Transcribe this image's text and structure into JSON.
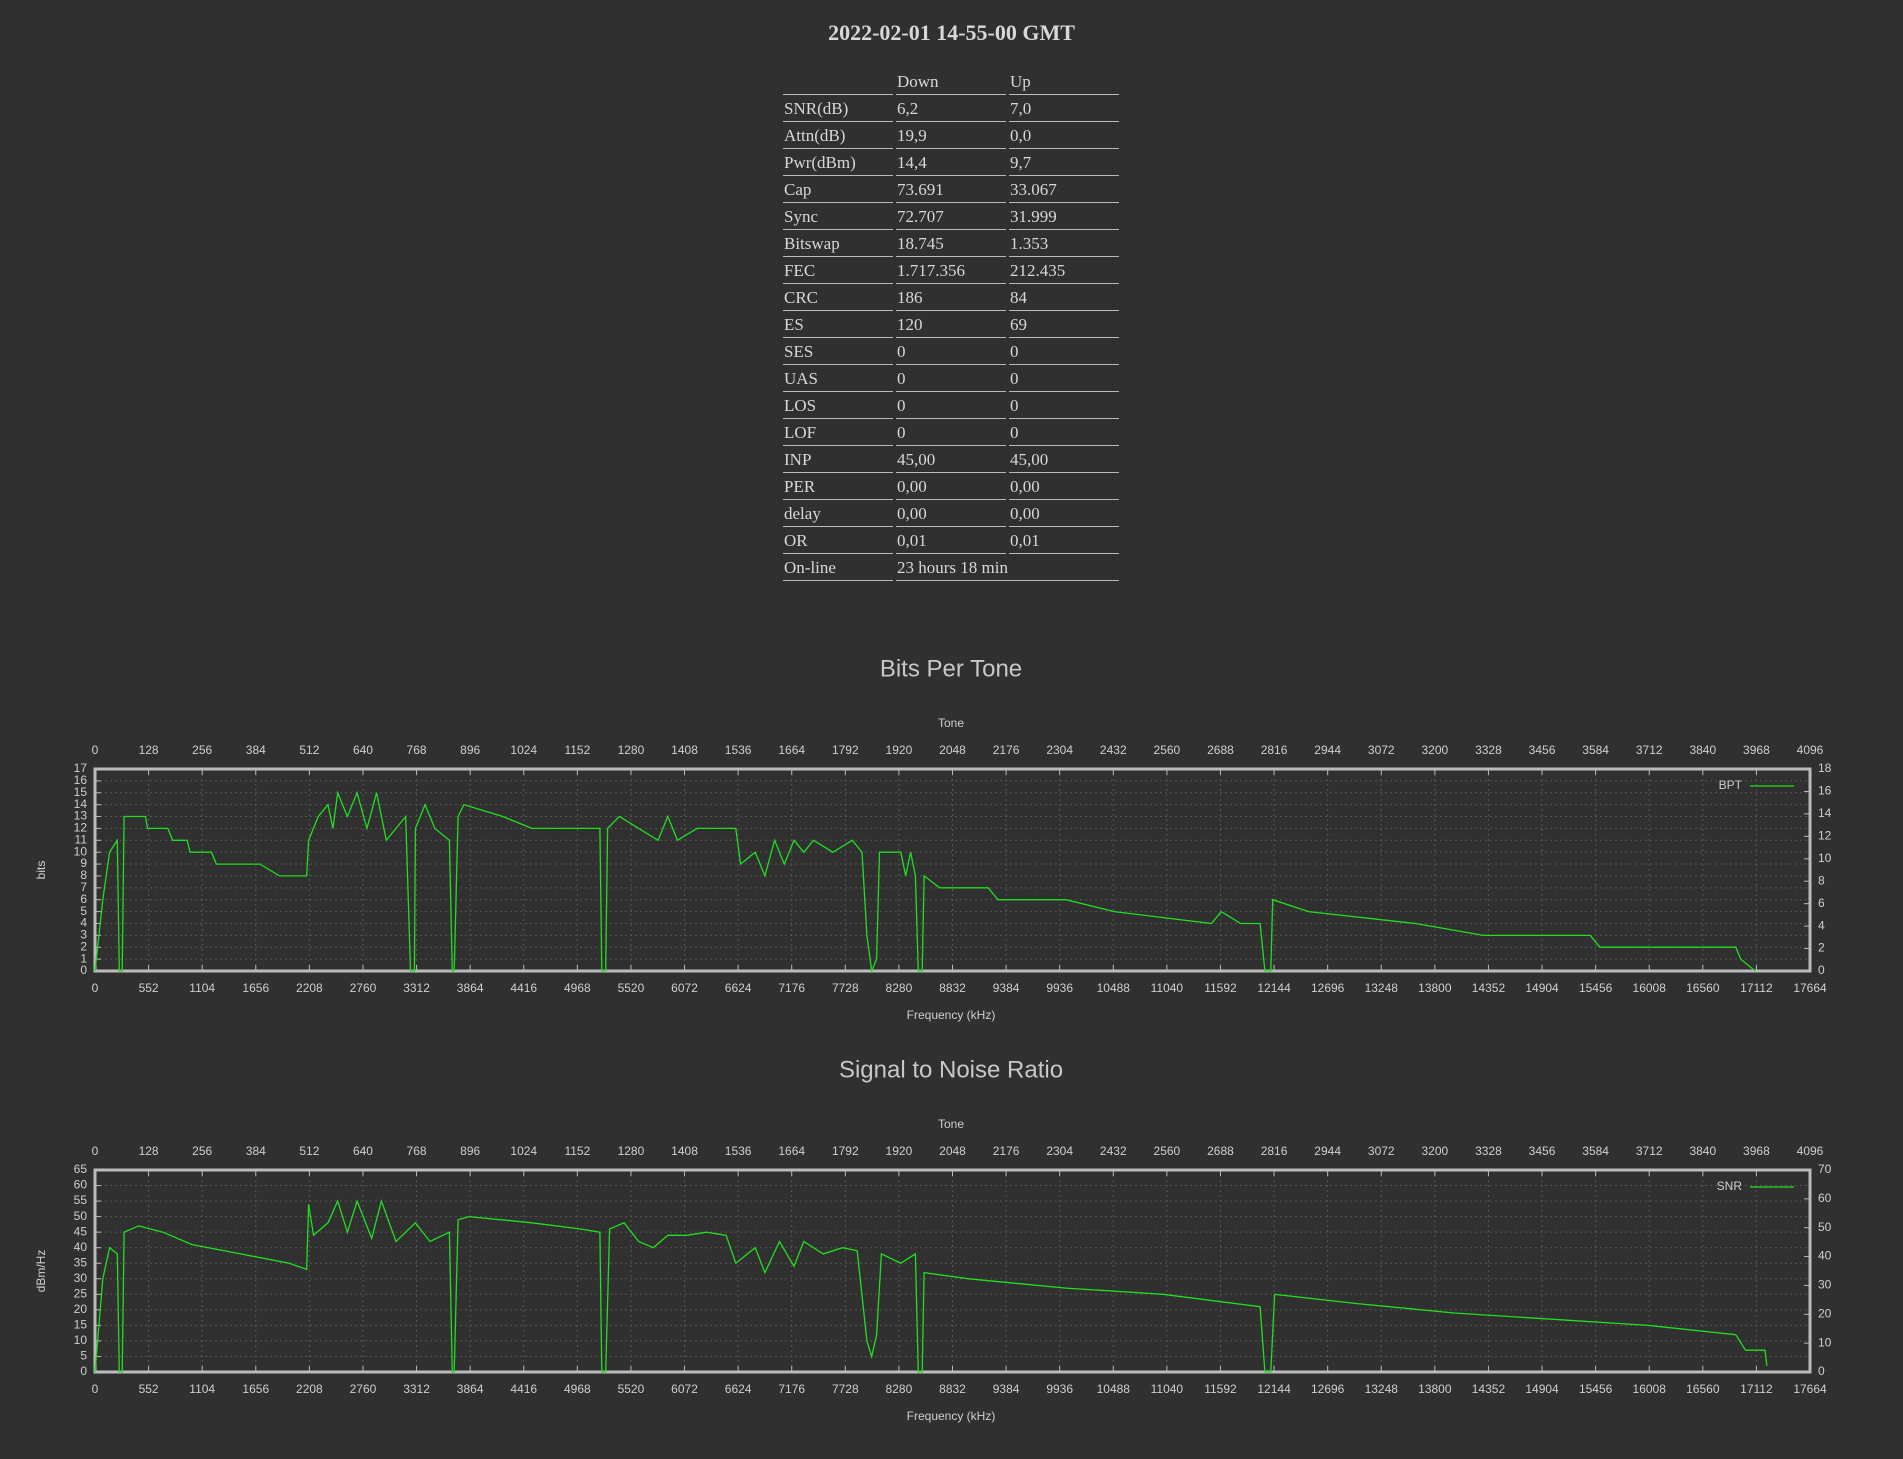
{
  "title": "2022-02-01 14-55-00 GMT",
  "table": {
    "columns": [
      "Down",
      "Up"
    ],
    "rows": [
      [
        "SNR(dB)",
        "6,2",
        "7,0"
      ],
      [
        "Attn(dB)",
        "19,9",
        "0,0"
      ],
      [
        "Pwr(dBm)",
        "14,4",
        "9,7"
      ],
      [
        "Cap",
        "73.691",
        "33.067"
      ],
      [
        "Sync",
        "72.707",
        "31.999"
      ],
      [
        "Bitswap",
        "18.745",
        "1.353"
      ],
      [
        "FEC",
        "1.717.356",
        "212.435"
      ],
      [
        "CRC",
        "186",
        "84"
      ],
      [
        "ES",
        "120",
        "69"
      ],
      [
        "SES",
        "0",
        "0"
      ],
      [
        "UAS",
        "0",
        "0"
      ],
      [
        "LOS",
        "0",
        "0"
      ],
      [
        "LOF",
        "0",
        "0"
      ],
      [
        "INP",
        "45,00",
        "45,00"
      ],
      [
        "PER",
        "0,00",
        "0,00"
      ],
      [
        "delay",
        "0,00",
        "0,00"
      ],
      [
        "OR",
        "0,01",
        "0,01"
      ],
      [
        "On-line",
        "23 hours 18 min"
      ]
    ]
  },
  "chart_data": [
    {
      "type": "line",
      "title": "Bits Per Tone",
      "x2label": "Tone",
      "xlabel": "Frequency (kHz)",
      "ylabel": "bits",
      "xlim": [
        0,
        17664
      ],
      "xticks": [
        0,
        552,
        1104,
        1656,
        2208,
        2760,
        3312,
        3864,
        4416,
        4968,
        5520,
        6072,
        6624,
        7176,
        7728,
        8280,
        8832,
        9384,
        9936,
        10488,
        11040,
        11592,
        12144,
        12696,
        13248,
        13800,
        14352,
        14904,
        15456,
        16008,
        16560,
        17112,
        17664
      ],
      "x2lim": [
        0,
        4096
      ],
      "x2ticks": [
        0,
        128,
        256,
        384,
        512,
        640,
        768,
        896,
        1024,
        1152,
        1280,
        1408,
        1536,
        1664,
        1792,
        1920,
        2048,
        2176,
        2304,
        2432,
        2560,
        2688,
        2816,
        2944,
        3072,
        3200,
        3328,
        3456,
        3584,
        3712,
        3840,
        3968,
        4096
      ],
      "ylim": [
        0,
        17
      ],
      "yticks": [
        0,
        1,
        2,
        3,
        4,
        5,
        6,
        7,
        8,
        9,
        10,
        11,
        12,
        13,
        14,
        15,
        16,
        17
      ],
      "y2lim": [
        0,
        18
      ],
      "y2ticks": [
        0,
        2,
        4,
        6,
        8,
        10,
        12,
        14,
        16,
        18
      ],
      "grid": true,
      "legend": "upper right",
      "series": [
        {
          "name": "BPT",
          "color": "#22dd22",
          "x": [
            0,
            80,
            150,
            230,
            250,
            280,
            300,
            520,
            540,
            750,
            800,
            950,
            980,
            1200,
            1250,
            1700,
            1900,
            2180,
            2200,
            2300,
            2400,
            2450,
            2500,
            2600,
            2700,
            2800,
            2900,
            3000,
            3200,
            3250,
            3290,
            3300,
            3400,
            3500,
            3650,
            3680,
            3700,
            3740,
            3800,
            4200,
            4500,
            5200,
            5220,
            5260,
            5280,
            5400,
            5600,
            5800,
            5900,
            6000,
            6200,
            6600,
            6650,
            6800,
            6900,
            7000,
            7100,
            7200,
            7300,
            7400,
            7600,
            7800,
            7900,
            7950,
            8000,
            8050,
            8080,
            8300,
            8350,
            8400,
            8450,
            8480,
            8520,
            8540,
            8700,
            9200,
            9300,
            10000,
            10500,
            11500,
            11600,
            11800,
            12000,
            12050,
            12110,
            12130,
            12500,
            13600,
            14300,
            15400,
            15500,
            16900,
            16950,
            17100
          ],
          "values": [
            0,
            6,
            10,
            11,
            0,
            0,
            13,
            13,
            12,
            12,
            11,
            11,
            10,
            10,
            9,
            9,
            8,
            8,
            11,
            13,
            14,
            12,
            15,
            13,
            15,
            12,
            15,
            11,
            13,
            0,
            0,
            12,
            14,
            12,
            11,
            0,
            0,
            13,
            14,
            13,
            12,
            12,
            0,
            0,
            12,
            13,
            12,
            11,
            13,
            11,
            12,
            12,
            9,
            10,
            8,
            11,
            9,
            11,
            10,
            11,
            10,
            11,
            10,
            3,
            0,
            1,
            10,
            10,
            8,
            10,
            8,
            0,
            0,
            8,
            7,
            7,
            6,
            6,
            5,
            4,
            5,
            4,
            4,
            0,
            0,
            6,
            5,
            4,
            3,
            3,
            2,
            2,
            1,
            0
          ]
        }
      ]
    },
    {
      "type": "line",
      "title": "Signal to Noise Ratio",
      "x2label": "Tone",
      "xlabel": "Frequency (kHz)",
      "ylabel": "dBm/Hz",
      "xlim": [
        0,
        17664
      ],
      "xticks": [
        0,
        552,
        1104,
        1656,
        2208,
        2760,
        3312,
        3864,
        4416,
        4968,
        5520,
        6072,
        6624,
        7176,
        7728,
        8280,
        8832,
        9384,
        9936,
        10488,
        11040,
        11592,
        12144,
        12696,
        13248,
        13800,
        14352,
        14904,
        15456,
        16008,
        16560,
        17112,
        17664
      ],
      "x2lim": [
        0,
        4096
      ],
      "x2ticks": [
        0,
        128,
        256,
        384,
        512,
        640,
        768,
        896,
        1024,
        1152,
        1280,
        1408,
        1536,
        1664,
        1792,
        1920,
        2048,
        2176,
        2304,
        2432,
        2560,
        2688,
        2816,
        2944,
        3072,
        3200,
        3328,
        3456,
        3584,
        3712,
        3840,
        3968,
        4096
      ],
      "ylim": [
        0,
        65
      ],
      "yticks": [
        0,
        5,
        10,
        15,
        20,
        25,
        30,
        35,
        40,
        45,
        50,
        55,
        60,
        65
      ],
      "y2lim": [
        0,
        70
      ],
      "y2ticks": [
        0,
        10,
        20,
        30,
        40,
        50,
        60,
        70
      ],
      "grid": true,
      "legend": "upper right",
      "series": [
        {
          "name": "SNR",
          "color": "#22dd22",
          "x": [
            0,
            80,
            150,
            230,
            250,
            280,
            300,
            450,
            700,
            1000,
            1500,
            2000,
            2180,
            2200,
            2250,
            2400,
            2500,
            2600,
            2700,
            2850,
            2950,
            3100,
            3300,
            3450,
            3650,
            3680,
            3700,
            3740,
            3850,
            4500,
            5000,
            5200,
            5220,
            5260,
            5300,
            5450,
            5600,
            5750,
            5900,
            6100,
            6300,
            6500,
            6600,
            6800,
            6900,
            7050,
            7200,
            7300,
            7500,
            7700,
            7850,
            7950,
            8000,
            8050,
            8100,
            8300,
            8450,
            8480,
            8520,
            8540,
            9000,
            10000,
            11000,
            12000,
            12050,
            12110,
            12150,
            13000,
            14000,
            15000,
            16000,
            16900,
            17000,
            17200,
            17220
          ],
          "values": [
            0,
            30,
            40,
            38,
            0,
            0,
            45,
            47,
            45,
            41,
            38,
            35,
            33,
            54,
            44,
            48,
            55,
            45,
            55,
            43,
            55,
            42,
            48,
            42,
            45,
            0,
            0,
            49,
            50,
            48,
            46,
            45,
            0,
            0,
            46,
            48,
            42,
            40,
            44,
            44,
            45,
            44,
            35,
            40,
            32,
            42,
            34,
            42,
            38,
            40,
            39,
            10,
            5,
            12,
            38,
            35,
            38,
            0,
            0,
            32,
            30,
            27,
            25,
            21,
            0,
            0,
            25,
            22,
            19,
            17,
            15,
            12,
            7,
            7,
            2
          ]
        }
      ]
    }
  ]
}
